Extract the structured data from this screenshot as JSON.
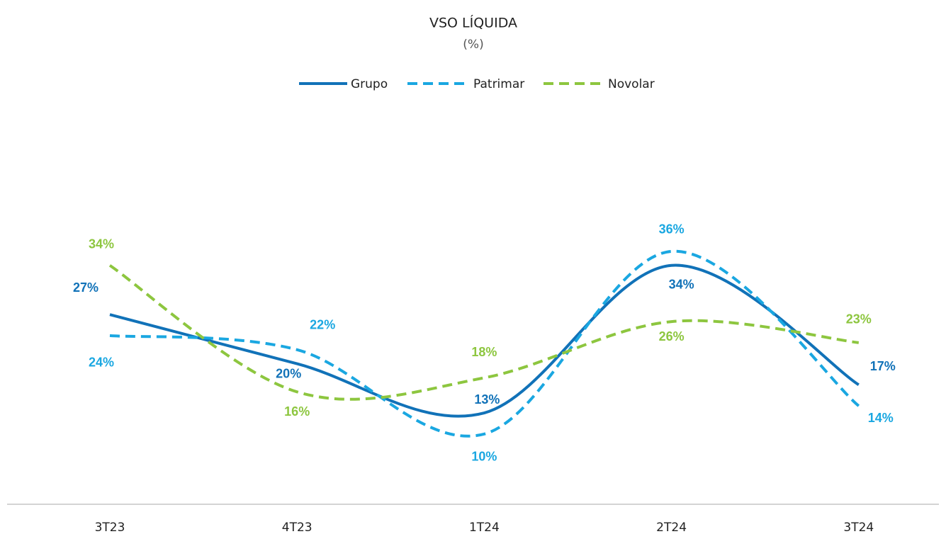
{
  "chart_data": {
    "type": "line",
    "title": "VSO LÍQUIDA",
    "subtitle": "(%)",
    "categories": [
      "3T23",
      "4T23",
      "1T24",
      "2T24",
      "3T24"
    ],
    "series": [
      {
        "name": "Grupo",
        "color": "#1172b8",
        "dashed": false,
        "values": [
          27,
          20,
          13,
          34,
          17
        ],
        "value_labels": [
          "27%",
          "20%",
          "13%",
          "34%",
          "17%"
        ]
      },
      {
        "name": "Patrimar",
        "color": "#1aa7e1",
        "dashed": true,
        "values": [
          24,
          22,
          10,
          36,
          14
        ],
        "value_labels": [
          "24%",
          "22%",
          "10%",
          "36%",
          "14%"
        ]
      },
      {
        "name": "Novolar",
        "color": "#8dc63f",
        "dashed": true,
        "values": [
          34,
          16,
          18,
          26,
          23
        ],
        "value_labels": [
          "34%",
          "16%",
          "18%",
          "26%",
          "23%"
        ]
      }
    ],
    "smooth": true,
    "legend": "top"
  }
}
